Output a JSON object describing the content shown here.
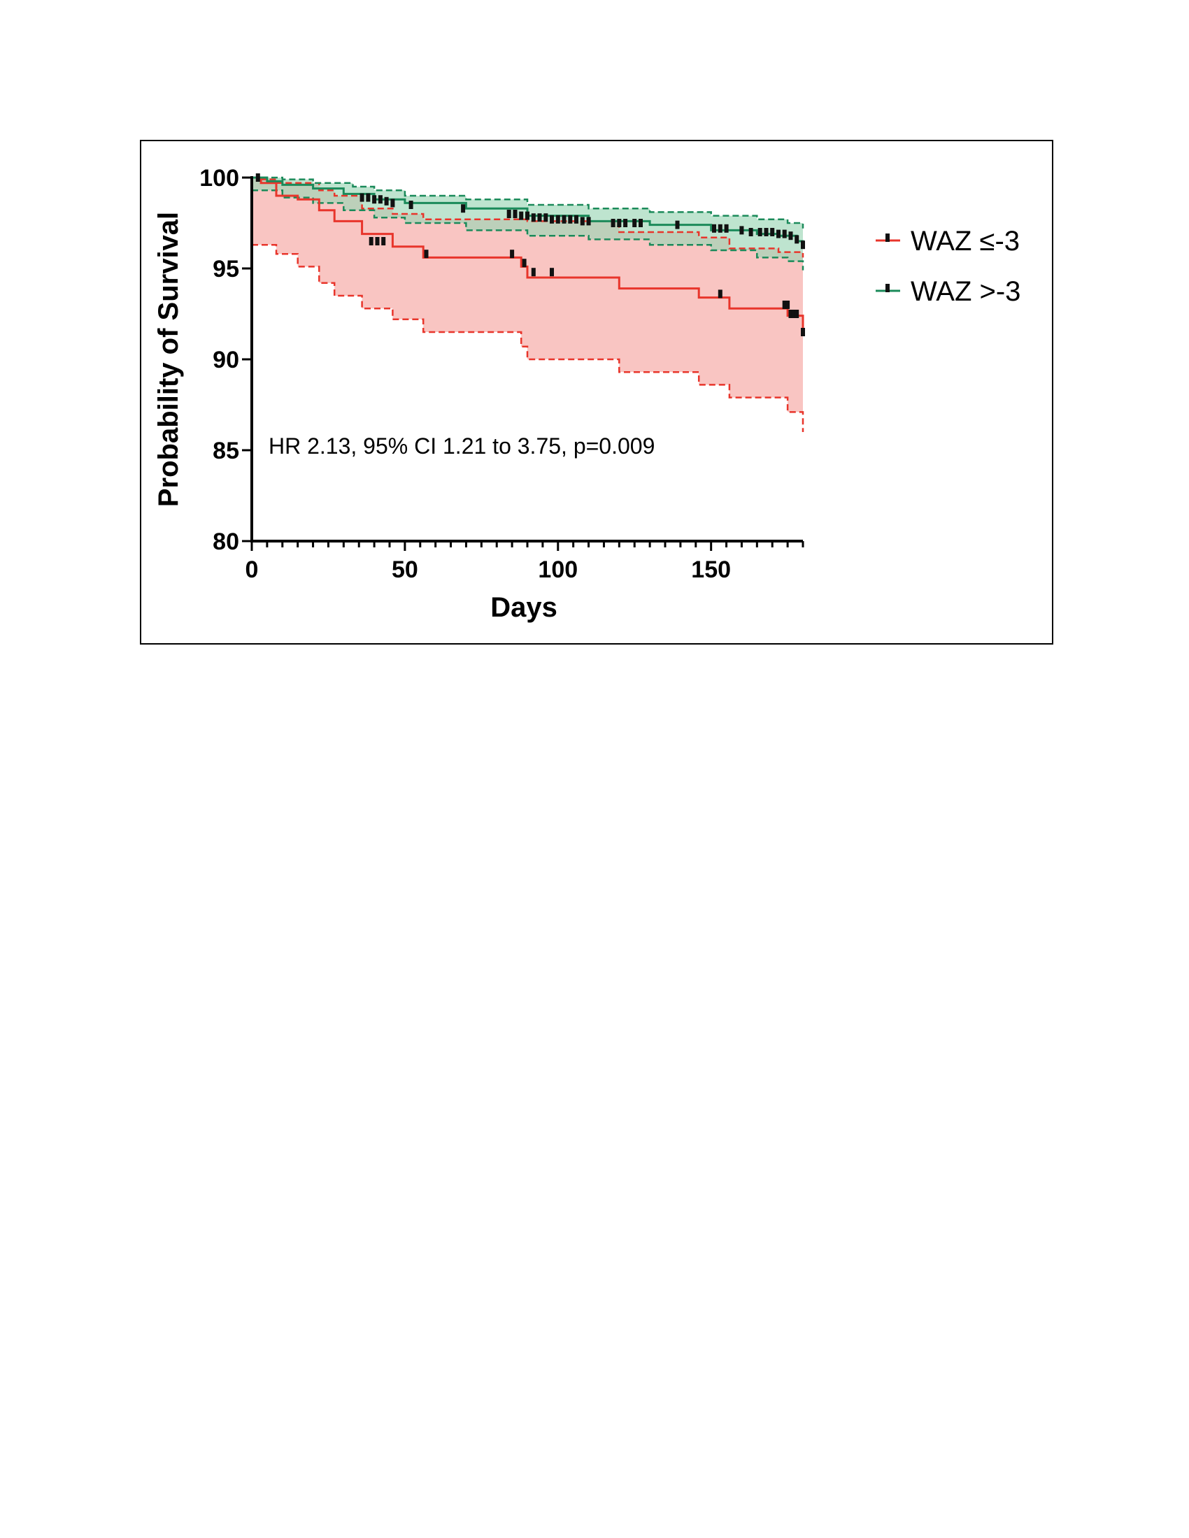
{
  "chart_data": {
    "type": "line",
    "subtype": "kaplan-meier",
    "xlabel": "Days",
    "ylabel": "Probability of Survival",
    "xlim": [
      0,
      180
    ],
    "ylim": [
      80,
      100
    ],
    "xticks": [
      0,
      50,
      100,
      150
    ],
    "yticks": [
      80,
      85,
      90,
      95,
      100
    ],
    "x_minor_tick_step": 5,
    "grid": false,
    "legend_position": "right",
    "annotation": "HR 2.13, 95% CI 1.21 to 3.75, p=0.009",
    "series": [
      {
        "name": "WAZ ≤-3",
        "color": "#e8352b",
        "band_color": "#f7b7b3",
        "survival": [
          [
            0,
            100
          ],
          [
            3,
            99.7
          ],
          [
            8,
            99
          ],
          [
            15,
            98.8
          ],
          [
            22,
            98.2
          ],
          [
            27,
            97.6
          ],
          [
            36,
            96.9
          ],
          [
            46,
            96.2
          ],
          [
            56,
            95.6
          ],
          [
            86,
            95.6
          ],
          [
            88,
            95.1
          ],
          [
            90,
            94.5
          ],
          [
            120,
            93.9
          ],
          [
            146,
            93.4
          ],
          [
            156,
            92.8
          ],
          [
            172,
            92.8
          ],
          [
            175,
            92.4
          ],
          [
            180,
            91.5
          ]
        ],
        "ci_upper": [
          [
            0,
            100
          ],
          [
            3,
            99.9
          ],
          [
            8,
            99.7
          ],
          [
            22,
            99.3
          ],
          [
            27,
            99.0
          ],
          [
            36,
            98.3
          ],
          [
            46,
            98.0
          ],
          [
            56,
            97.7
          ],
          [
            90,
            97.6
          ],
          [
            120,
            97.0
          ],
          [
            146,
            96.7
          ],
          [
            156,
            96.1
          ],
          [
            172,
            95.9
          ],
          [
            180,
            95.6
          ]
        ],
        "ci_lower": [
          [
            0,
            96.3
          ],
          [
            8,
            95.8
          ],
          [
            15,
            95.1
          ],
          [
            22,
            94.2
          ],
          [
            27,
            93.5
          ],
          [
            36,
            92.8
          ],
          [
            46,
            92.2
          ],
          [
            56,
            91.5
          ],
          [
            86,
            91.5
          ],
          [
            88,
            90.7
          ],
          [
            90,
            90.0
          ],
          [
            120,
            89.3
          ],
          [
            146,
            88.6
          ],
          [
            156,
            87.9
          ],
          [
            175,
            87.1
          ],
          [
            180,
            86.0
          ]
        ],
        "censored": [
          [
            39,
            96.5
          ],
          [
            41,
            96.5
          ],
          [
            43,
            96.5
          ],
          [
            57,
            95.8
          ],
          [
            85,
            95.8
          ],
          [
            89,
            95.3
          ],
          [
            92,
            94.8
          ],
          [
            98,
            94.8
          ],
          [
            153,
            93.6
          ],
          [
            174,
            93.0
          ],
          [
            175,
            93.0
          ],
          [
            176,
            92.5
          ],
          [
            177,
            92.5
          ],
          [
            178,
            92.5
          ],
          [
            180,
            91.5
          ]
        ]
      },
      {
        "name": "WAZ >-3",
        "color": "#1b8a5a",
        "band_color": "#9bd6b5",
        "survival": [
          [
            0,
            100
          ],
          [
            5,
            99.8
          ],
          [
            10,
            99.6
          ],
          [
            20,
            99.4
          ],
          [
            30,
            99.1
          ],
          [
            40,
            98.8
          ],
          [
            50,
            98.6
          ],
          [
            70,
            98.3
          ],
          [
            90,
            97.9
          ],
          [
            110,
            97.6
          ],
          [
            130,
            97.4
          ],
          [
            150,
            97.1
          ],
          [
            165,
            96.9
          ],
          [
            172,
            96.8
          ],
          [
            178,
            96.5
          ],
          [
            180,
            96.2
          ]
        ],
        "ci_upper": [
          [
            0,
            100
          ],
          [
            10,
            99.9
          ],
          [
            20,
            99.7
          ],
          [
            33,
            99.5
          ],
          [
            40,
            99.3
          ],
          [
            50,
            99.0
          ],
          [
            70,
            98.8
          ],
          [
            90,
            98.5
          ],
          [
            110,
            98.3
          ],
          [
            130,
            98.1
          ],
          [
            150,
            97.9
          ],
          [
            165,
            97.7
          ],
          [
            175,
            97.5
          ],
          [
            180,
            97.2
          ]
        ],
        "ci_lower": [
          [
            0,
            99.3
          ],
          [
            10,
            98.9
          ],
          [
            20,
            98.6
          ],
          [
            30,
            98.2
          ],
          [
            40,
            97.8
          ],
          [
            50,
            97.5
          ],
          [
            70,
            97.1
          ],
          [
            90,
            96.8
          ],
          [
            110,
            96.6
          ],
          [
            130,
            96.3
          ],
          [
            150,
            96.0
          ],
          [
            165,
            95.6
          ],
          [
            175,
            95.4
          ],
          [
            180,
            94.9
          ]
        ],
        "censored": [
          [
            2,
            100
          ],
          [
            36,
            98.9
          ],
          [
            38,
            98.9
          ],
          [
            40,
            98.8
          ],
          [
            42,
            98.8
          ],
          [
            44,
            98.7
          ],
          [
            46,
            98.6
          ],
          [
            52,
            98.5
          ],
          [
            69,
            98.3
          ],
          [
            84,
            98.0
          ],
          [
            86,
            98.0
          ],
          [
            88,
            97.9
          ],
          [
            90,
            97.9
          ],
          [
            92,
            97.8
          ],
          [
            94,
            97.8
          ],
          [
            96,
            97.8
          ],
          [
            98,
            97.7
          ],
          [
            100,
            97.7
          ],
          [
            102,
            97.7
          ],
          [
            104,
            97.7
          ],
          [
            106,
            97.7
          ],
          [
            108,
            97.6
          ],
          [
            110,
            97.6
          ],
          [
            118,
            97.5
          ],
          [
            120,
            97.5
          ],
          [
            122,
            97.5
          ],
          [
            125,
            97.5
          ],
          [
            127,
            97.5
          ],
          [
            139,
            97.4
          ],
          [
            151,
            97.2
          ],
          [
            153,
            97.2
          ],
          [
            155,
            97.2
          ],
          [
            160,
            97.1
          ],
          [
            163,
            97.0
          ],
          [
            166,
            97.0
          ],
          [
            168,
            97.0
          ],
          [
            170,
            97.0
          ],
          [
            172,
            96.9
          ],
          [
            174,
            96.9
          ],
          [
            176,
            96.8
          ],
          [
            178,
            96.6
          ],
          [
            180,
            96.3
          ]
        ]
      }
    ]
  }
}
